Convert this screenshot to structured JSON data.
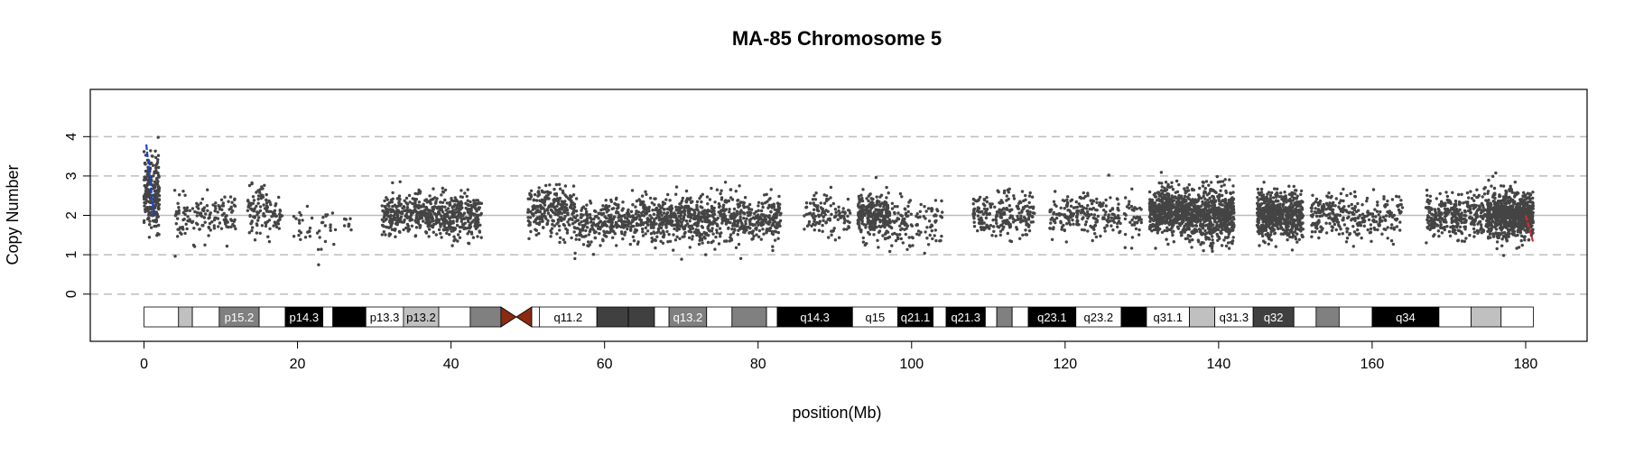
{
  "chart_data": {
    "type": "scatter",
    "title": "MA-85  Chromosome 5",
    "xlabel": "position(Mb)",
    "ylabel": "Copy Number",
    "xlim": [
      -7,
      188
    ],
    "ylim": [
      -1.2,
      5.2
    ],
    "x_ticks": [
      0,
      20,
      40,
      60,
      80,
      100,
      120,
      140,
      160,
      180
    ],
    "y_ticks": [
      0,
      1,
      2,
      3,
      4
    ],
    "y_gridlines_dashed": [
      0,
      1,
      3,
      4
    ],
    "y_baseline_solid": 2,
    "point_color": "#444444",
    "centromere_color": "#8b2a10",
    "centromere_mb": [
      46.5,
      50.5
    ],
    "chromosome_end_mb": 181,
    "segments": [
      {
        "x": [
          0.3,
          1.3
        ],
        "y": [
          2.0,
          3.8
        ],
        "color": "#1f3fd6"
      },
      {
        "x": [
          180.0,
          181.0
        ],
        "y": [
          1.3,
          2.0
        ],
        "color": "#d42a2a"
      }
    ],
    "point_clusters": [
      {
        "x": [
          0,
          2
        ],
        "n": 220,
        "center": 2.6,
        "spread": 0.8
      },
      {
        "x": [
          4,
          9
        ],
        "n": 90,
        "center": 1.9,
        "spread": 0.45
      },
      {
        "x": [
          9,
          12
        ],
        "n": 60,
        "center": 2.0,
        "spread": 0.45
      },
      {
        "x": [
          13.5,
          16.5
        ],
        "n": 90,
        "center": 2.1,
        "spread": 0.5
      },
      {
        "x": [
          16.5,
          18
        ],
        "n": 30,
        "center": 2.0,
        "spread": 0.4
      },
      {
        "x": [
          19.5,
          25
        ],
        "n": 40,
        "center": 1.6,
        "spread": 0.5
      },
      {
        "x": [
          26,
          27
        ],
        "n": 8,
        "center": 1.8,
        "spread": 0.3
      },
      {
        "x": [
          31,
          44
        ],
        "n": 600,
        "center": 2.0,
        "spread": 0.45
      },
      {
        "x": [
          50,
          56
        ],
        "n": 260,
        "center": 2.1,
        "spread": 0.5
      },
      {
        "x": [
          56,
          60
        ],
        "n": 130,
        "center": 1.8,
        "spread": 0.45
      },
      {
        "x": [
          60,
          66
        ],
        "n": 220,
        "center": 1.9,
        "spread": 0.45
      },
      {
        "x": [
          66,
          83
        ],
        "n": 750,
        "center": 1.9,
        "spread": 0.5
      },
      {
        "x": [
          86,
          92
        ],
        "n": 120,
        "center": 2.0,
        "spread": 0.45
      },
      {
        "x": [
          93,
          97
        ],
        "n": 260,
        "center": 2.0,
        "spread": 0.45
      },
      {
        "x": [
          97,
          104
        ],
        "n": 130,
        "center": 1.8,
        "spread": 0.55
      },
      {
        "x": [
          108,
          116
        ],
        "n": 230,
        "center": 2.0,
        "spread": 0.45
      },
      {
        "x": [
          118,
          130
        ],
        "n": 260,
        "center": 2.0,
        "spread": 0.45
      },
      {
        "x": [
          131,
          136
        ],
        "n": 520,
        "center": 2.1,
        "spread": 0.5
      },
      {
        "x": [
          136,
          142
        ],
        "n": 620,
        "center": 2.0,
        "spread": 0.55
      },
      {
        "x": [
          145,
          151
        ],
        "n": 620,
        "center": 2.0,
        "spread": 0.5
      },
      {
        "x": [
          152,
          158
        ],
        "n": 180,
        "center": 2.0,
        "spread": 0.45
      },
      {
        "x": [
          158,
          164
        ],
        "n": 120,
        "center": 1.9,
        "spread": 0.45
      },
      {
        "x": [
          167,
          175
        ],
        "n": 330,
        "center": 2.0,
        "spread": 0.45
      },
      {
        "x": [
          175,
          181
        ],
        "n": 720,
        "center": 2.0,
        "spread": 0.5
      }
    ],
    "ideogram_bands": [
      {
        "label": "",
        "start": 0,
        "end": 4.5,
        "fill": "#ffffff",
        "text": "#000000"
      },
      {
        "label": "",
        "start": 4.5,
        "end": 6.3,
        "fill": "#c0c0c0",
        "text": "#000000"
      },
      {
        "label": "",
        "start": 6.3,
        "end": 9.8,
        "fill": "#ffffff",
        "text": "#000000"
      },
      {
        "label": "p15.2",
        "start": 9.8,
        "end": 15.0,
        "fill": "#808080",
        "text": "#ffffff"
      },
      {
        "label": "",
        "start": 15.0,
        "end": 18.4,
        "fill": "#ffffff",
        "text": "#000000"
      },
      {
        "label": "p14.3",
        "start": 18.4,
        "end": 23.3,
        "fill": "#000000",
        "text": "#ffffff"
      },
      {
        "label": "",
        "start": 23.3,
        "end": 24.6,
        "fill": "#ffffff",
        "text": "#000000"
      },
      {
        "label": "",
        "start": 24.6,
        "end": 28.9,
        "fill": "#000000",
        "text": "#ffffff"
      },
      {
        "label": "p13.3",
        "start": 28.9,
        "end": 33.8,
        "fill": "#ffffff",
        "text": "#000000"
      },
      {
        "label": "p13.2",
        "start": 33.8,
        "end": 38.4,
        "fill": "#c0c0c0",
        "text": "#000000"
      },
      {
        "label": "",
        "start": 38.4,
        "end": 42.5,
        "fill": "#ffffff",
        "text": "#000000"
      },
      {
        "label": "",
        "start": 42.5,
        "end": 46.5,
        "fill": "#808080",
        "text": "#000000"
      },
      {
        "label": "",
        "start": 50.5,
        "end": 51.5,
        "fill": "#ffffff",
        "text": "#000000"
      },
      {
        "label": "q11.2",
        "start": 51.5,
        "end": 59.0,
        "fill": "#ffffff",
        "text": "#000000"
      },
      {
        "label": "",
        "start": 59.0,
        "end": 63.1,
        "fill": "#404040",
        "text": "#ffffff"
      },
      {
        "label": "",
        "start": 63.1,
        "end": 66.5,
        "fill": "#404040",
        "text": "#ffffff"
      },
      {
        "label": "",
        "start": 66.5,
        "end": 68.4,
        "fill": "#ffffff",
        "text": "#000000"
      },
      {
        "label": "q13.2",
        "start": 68.4,
        "end": 73.3,
        "fill": "#808080",
        "text": "#ffffff"
      },
      {
        "label": "",
        "start": 73.3,
        "end": 76.6,
        "fill": "#ffffff",
        "text": "#000000"
      },
      {
        "label": "",
        "start": 76.6,
        "end": 81.1,
        "fill": "#808080",
        "text": "#000000"
      },
      {
        "label": "",
        "start": 81.1,
        "end": 82.5,
        "fill": "#ffffff",
        "text": "#000000"
      },
      {
        "label": "q14.3",
        "start": 82.5,
        "end": 92.3,
        "fill": "#000000",
        "text": "#ffffff"
      },
      {
        "label": "q15",
        "start": 92.3,
        "end": 98.2,
        "fill": "#ffffff",
        "text": "#000000"
      },
      {
        "label": "q21.1",
        "start": 98.2,
        "end": 102.8,
        "fill": "#000000",
        "text": "#ffffff"
      },
      {
        "label": "",
        "start": 102.8,
        "end": 104.5,
        "fill": "#ffffff",
        "text": "#000000"
      },
      {
        "label": "q21.3",
        "start": 104.5,
        "end": 109.6,
        "fill": "#000000",
        "text": "#ffffff"
      },
      {
        "label": "",
        "start": 109.6,
        "end": 111.1,
        "fill": "#ffffff",
        "text": "#000000"
      },
      {
        "label": "",
        "start": 111.1,
        "end": 113.1,
        "fill": "#808080",
        "text": "#000000"
      },
      {
        "label": "",
        "start": 113.1,
        "end": 115.2,
        "fill": "#ffffff",
        "text": "#000000"
      },
      {
        "label": "q23.1",
        "start": 115.2,
        "end": 121.4,
        "fill": "#000000",
        "text": "#ffffff"
      },
      {
        "label": "q23.2",
        "start": 121.4,
        "end": 127.3,
        "fill": "#ffffff",
        "text": "#000000"
      },
      {
        "label": "",
        "start": 127.3,
        "end": 130.6,
        "fill": "#000000",
        "text": "#ffffff"
      },
      {
        "label": "q31.1",
        "start": 130.6,
        "end": 136.2,
        "fill": "#ffffff",
        "text": "#000000"
      },
      {
        "label": "",
        "start": 136.2,
        "end": 139.5,
        "fill": "#c0c0c0",
        "text": "#000000"
      },
      {
        "label": "q31.3",
        "start": 139.5,
        "end": 144.5,
        "fill": "#ffffff",
        "text": "#000000"
      },
      {
        "label": "q32",
        "start": 144.5,
        "end": 149.8,
        "fill": "#404040",
        "text": "#ffffff"
      },
      {
        "label": "",
        "start": 149.8,
        "end": 152.7,
        "fill": "#ffffff",
        "text": "#000000"
      },
      {
        "label": "",
        "start": 152.7,
        "end": 155.7,
        "fill": "#808080",
        "text": "#000000"
      },
      {
        "label": "",
        "start": 155.7,
        "end": 160.0,
        "fill": "#ffffff",
        "text": "#000000"
      },
      {
        "label": "q34",
        "start": 160.0,
        "end": 168.7,
        "fill": "#000000",
        "text": "#ffffff"
      },
      {
        "label": "",
        "start": 168.7,
        "end": 172.9,
        "fill": "#ffffff",
        "text": "#000000"
      },
      {
        "label": "",
        "start": 172.9,
        "end": 176.8,
        "fill": "#c0c0c0",
        "text": "#000000"
      },
      {
        "label": "",
        "start": 176.8,
        "end": 181.0,
        "fill": "#ffffff",
        "text": "#000000"
      }
    ]
  }
}
